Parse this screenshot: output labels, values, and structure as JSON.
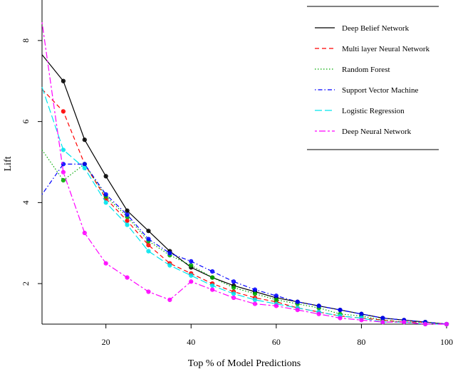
{
  "chart_data": {
    "type": "line",
    "xlabel": "Top % of Model Predictions",
    "ylabel": "Lift",
    "xlim": [
      5,
      100
    ],
    "ylim": [
      1,
      9
    ],
    "x_ticks": [
      "20",
      "40",
      "60",
      "80",
      "100"
    ],
    "y_ticks": [
      "2",
      "4",
      "6",
      "8"
    ],
    "legend_position": "top-right",
    "x": [
      5,
      10,
      15,
      20,
      25,
      30,
      35,
      40,
      45,
      50,
      55,
      60,
      65,
      70,
      75,
      80,
      85,
      90,
      95,
      100
    ],
    "series": [
      {
        "name": "Deep Belief Network",
        "color": "#000000",
        "dash": "solid",
        "values": [
          7.65,
          7.0,
          5.55,
          4.65,
          3.8,
          3.3,
          2.8,
          2.4,
          2.15,
          1.95,
          1.8,
          1.65,
          1.55,
          1.45,
          1.35,
          1.25,
          1.15,
          1.1,
          1.05,
          1.0
        ]
      },
      {
        "name": "Multi layer Neural Network",
        "color": "#ff0000",
        "dash": "dashed",
        "values": [
          6.8,
          6.25,
          4.95,
          4.1,
          3.55,
          2.95,
          2.5,
          2.25,
          2.0,
          1.8,
          1.65,
          1.55,
          1.4,
          1.3,
          1.2,
          1.15,
          1.1,
          1.05,
          1.05,
          1.0
        ]
      },
      {
        "name": "Random Forest",
        "color": "#00aa00",
        "dash": "dotted",
        "values": [
          5.3,
          4.55,
          4.95,
          4.15,
          3.65,
          3.05,
          2.7,
          2.45,
          2.15,
          1.9,
          1.75,
          1.6,
          1.5,
          1.4,
          1.25,
          1.2,
          1.1,
          1.05,
          1.05,
          1.0
        ]
      },
      {
        "name": "Support Vector Machine",
        "color": "#0000ff",
        "dash": "dashdot",
        "values": [
          4.2,
          4.95,
          4.95,
          4.2,
          3.7,
          3.1,
          2.75,
          2.55,
          2.3,
          2.05,
          1.85,
          1.7,
          1.55,
          1.45,
          1.35,
          1.25,
          1.15,
          1.1,
          1.05,
          1.0
        ]
      },
      {
        "name": "Logistic Regression",
        "color": "#00e5ee",
        "dash": "longdash",
        "values": [
          6.85,
          5.3,
          4.85,
          4.0,
          3.45,
          2.8,
          2.45,
          2.2,
          1.95,
          1.75,
          1.6,
          1.5,
          1.4,
          1.3,
          1.2,
          1.15,
          1.05,
          1.05,
          1.0,
          1.0
        ]
      },
      {
        "name": "Deep Neural Network",
        "color": "#ff00ff",
        "dash": "twodash",
        "values": [
          8.45,
          4.75,
          3.25,
          2.5,
          2.15,
          1.8,
          1.6,
          2.05,
          1.85,
          1.65,
          1.5,
          1.45,
          1.35,
          1.25,
          1.15,
          1.1,
          1.05,
          1.05,
          1.0,
          1.0
        ]
      }
    ]
  }
}
